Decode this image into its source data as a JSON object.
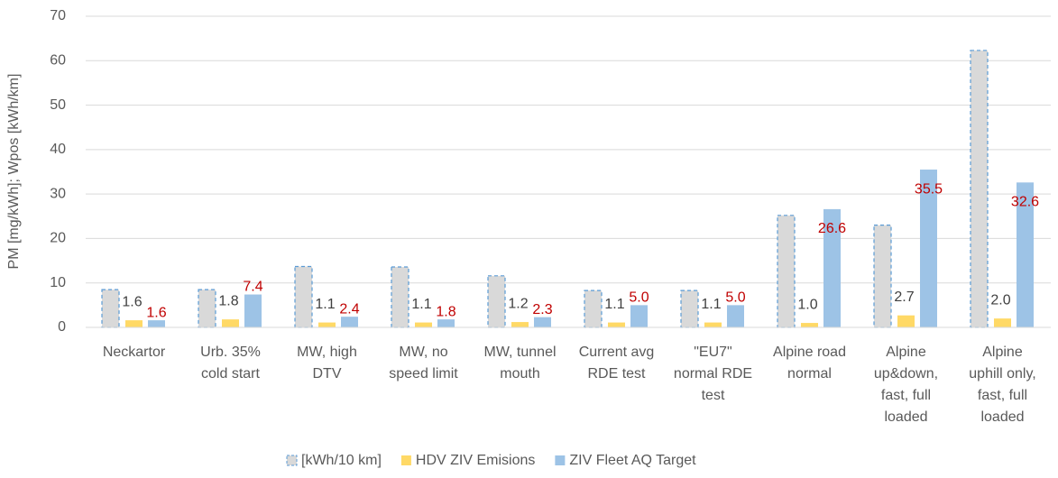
{
  "chart_data": {
    "type": "bar",
    "ylabel": "PM [mg/kWh]; Wpos [kWh/km]",
    "categories": [
      [
        "Neckartor"
      ],
      [
        "Urb. 35%",
        "cold start"
      ],
      [
        "MW, high",
        "DTV"
      ],
      [
        "MW, no",
        "speed limit"
      ],
      [
        "MW, tunnel",
        "mouth"
      ],
      [
        "Current avg",
        "RDE test"
      ],
      [
        "\"EU7\"",
        "normal RDE",
        "test"
      ],
      [
        "Alpine road",
        "normal"
      ],
      [
        "Alpine",
        "up&down,",
        "fast, full",
        "loaded"
      ],
      [
        "Alpine",
        "uphill only,",
        "fast, full",
        "loaded"
      ]
    ],
    "series": [
      {
        "name": "[kWh/10 km]",
        "color": "#d9d9d9",
        "border": "#5b9bd5",
        "values": [
          8.5,
          8.5,
          13.7,
          13.6,
          11.6,
          8.3,
          8.3,
          25.2,
          23.0,
          62.3
        ]
      },
      {
        "name": "HDV ZIV Emisions",
        "color": "#ffd966",
        "label_color": "#404040",
        "values": [
          1.6,
          1.8,
          1.1,
          1.1,
          1.2,
          1.1,
          1.1,
          1.0,
          2.7,
          2.0
        ],
        "value_labels": [
          "1.6",
          "1.8",
          "1.1",
          "1.1",
          "1.2",
          "1.1",
          "1.1",
          "1.0",
          "2.7",
          "2.0"
        ]
      },
      {
        "name": "ZIV Fleet AQ Target",
        "color": "#9dc3e6",
        "label_color": "#c00000",
        "values": [
          1.6,
          7.4,
          2.4,
          1.8,
          2.3,
          5.0,
          5.0,
          26.6,
          35.5,
          32.6
        ],
        "value_labels": [
          "1.6",
          "7.4",
          "2.4",
          "1.8",
          "2.3",
          "5.0",
          "5.0",
          "26.6",
          "35.5",
          "32.6"
        ]
      }
    ],
    "ylim": [
      0,
      70
    ],
    "yticks": [
      0,
      10,
      20,
      30,
      40,
      50,
      60,
      70
    ],
    "grid": true,
    "legend": "bottom"
  }
}
